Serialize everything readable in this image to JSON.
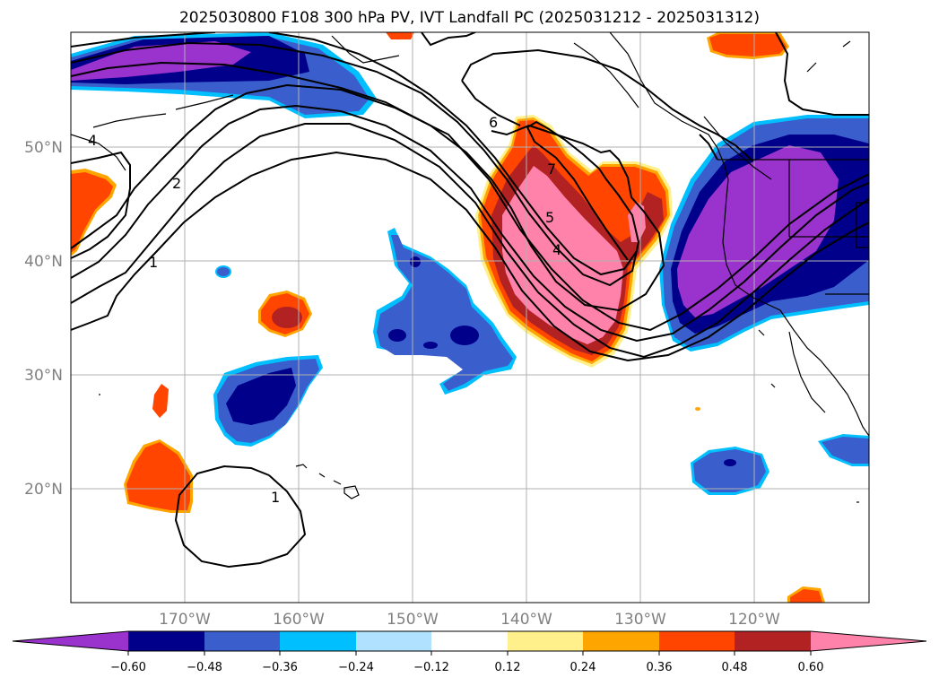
{
  "title": "2025030800 F108 300 hPa PV, IVT Landfall PC (2025031212 - 2025031312)",
  "lat_labels": [
    "50°N",
    "40°N",
    "30°N",
    "20°N"
  ],
  "lon_labels": [
    "170°W",
    "160°W",
    "150°W",
    "140°W",
    "130°W",
    "120°W"
  ],
  "contour_labels": [
    "4",
    "2",
    "1",
    "6",
    "7",
    "5",
    "4",
    "1"
  ],
  "colorbar": {
    "colors": [
      "#9a32cd",
      "#00008b",
      "#3a5fcd",
      "#00bfff",
      "#b0e2ff",
      "#ffffff",
      "#fff08c",
      "#ffa500",
      "#ff4500",
      "#b22222",
      "#ff82ab"
    ],
    "tick_labels": [
      "−0.60",
      "−0.48",
      "−0.36",
      "−0.24",
      "−0.12",
      "0.12",
      "0.24",
      "0.36",
      "0.48",
      "0.60"
    ]
  }
}
